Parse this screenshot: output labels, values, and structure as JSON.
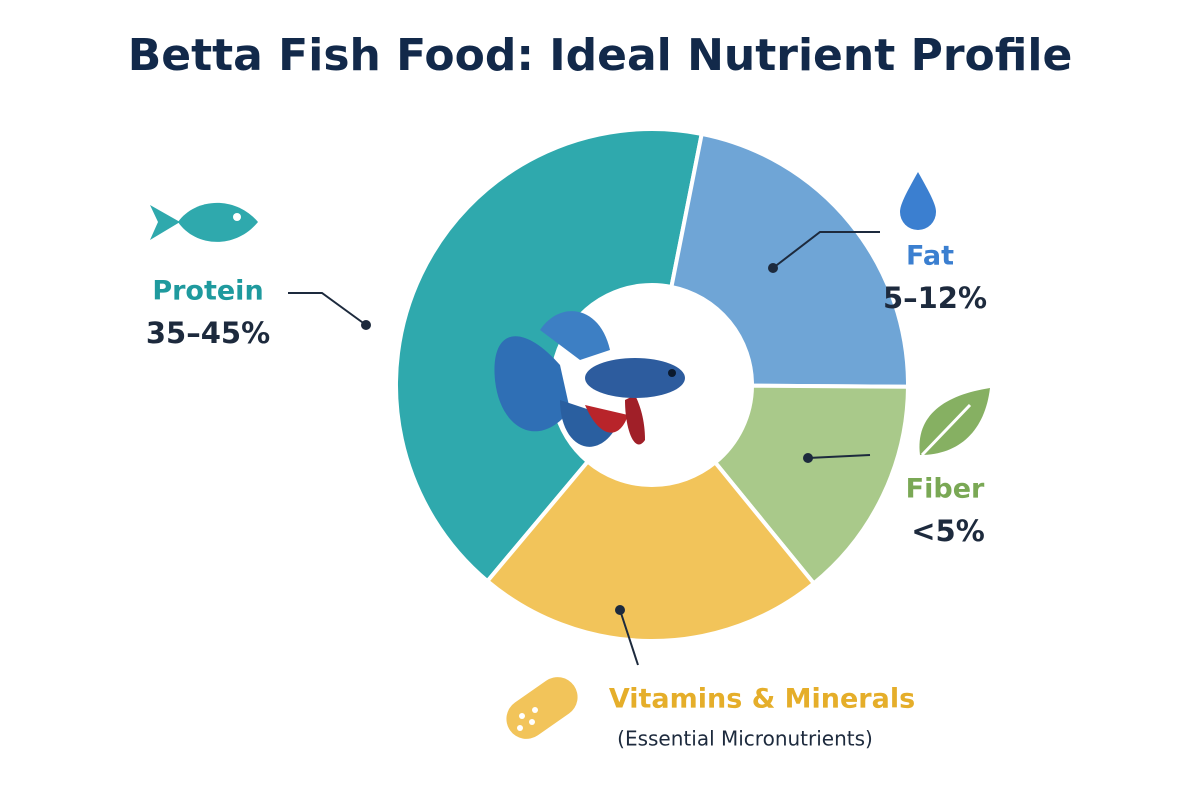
{
  "chart_data": {
    "type": "donut",
    "title": "Betta Fish Food: Ideal Nutrient Profile",
    "categories": [
      "Protein",
      "Fat",
      "Fiber",
      "Vitamins & Minerals"
    ],
    "values": [
      42,
      22,
      14,
      22
    ],
    "sublabels": [
      "35–45%",
      "5–12%",
      "<5%",
      "(Essential Micronutrients)"
    ],
    "colors": [
      "#2fa9ad",
      "#6fa5d6",
      "#a9c98a",
      "#f2c45a"
    ]
  }
}
